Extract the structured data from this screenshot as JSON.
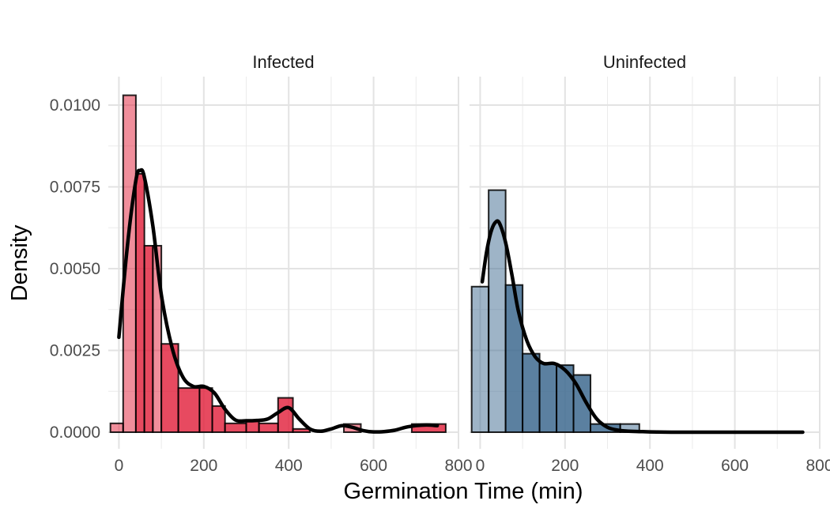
{
  "chart_data": {
    "type": "histogram",
    "xlabel": "Germination Time (min)",
    "ylabel": "Density",
    "xlim": [
      -25,
      800
    ],
    "ylim": [
      -0.0003,
      0.0108
    ],
    "x_ticks": [
      0,
      200,
      400,
      600,
      800
    ],
    "x_tick_labels": [
      "0",
      "200",
      "400",
      "600",
      "800"
    ],
    "y_ticks": [
      0.0,
      0.0025,
      0.005,
      0.0075,
      0.01
    ],
    "y_tick_labels": [
      "0.0000",
      "0.0025",
      "0.0050",
      "0.0075",
      "0.0100"
    ],
    "grid": true,
    "legend": "none",
    "panels": [
      {
        "name": "Infected",
        "fill_color": "#e11d38",
        "outline_color": "#000000",
        "bars": [
          {
            "x0": -20,
            "x1": 10,
            "density": 0.00027,
            "alpha": 0.5
          },
          {
            "x0": 10,
            "x1": 40,
            "density": 0.0103,
            "alpha": 0.5
          },
          {
            "x0": 40,
            "x1": 60,
            "density": 0.0079,
            "alpha": 0.8
          },
          {
            "x0": 60,
            "x1": 80,
            "density": 0.0057,
            "alpha": 0.8
          },
          {
            "x0": 80,
            "x1": 100,
            "density": 0.0057,
            "alpha": 0.5
          },
          {
            "x0": 100,
            "x1": 140,
            "density": 0.0027,
            "alpha": 0.8
          },
          {
            "x0": 140,
            "x1": 190,
            "density": 0.00135,
            "alpha": 0.8
          },
          {
            "x0": 190,
            "x1": 220,
            "density": 0.00135,
            "alpha": 0.8
          },
          {
            "x0": 220,
            "x1": 250,
            "density": 0.0008,
            "alpha": 0.8
          },
          {
            "x0": 250,
            "x1": 300,
            "density": 0.00027,
            "alpha": 0.8
          },
          {
            "x0": 300,
            "x1": 330,
            "density": 0.00035,
            "alpha": 0.8
          },
          {
            "x0": 330,
            "x1": 375,
            "density": 0.00027,
            "alpha": 0.8
          },
          {
            "x0": 375,
            "x1": 410,
            "density": 0.00105,
            "alpha": 0.8
          },
          {
            "x0": 410,
            "x1": 450,
            "density": 0.0001,
            "alpha": 0.8
          },
          {
            "x0": 530,
            "x1": 570,
            "density": 0.00025,
            "alpha": 0.5
          },
          {
            "x0": 690,
            "x1": 770,
            "density": 0.00025,
            "alpha": 0.8
          }
        ],
        "density_x": [
          0,
          20,
          40,
          50,
          60,
          80,
          100,
          125,
          150,
          175,
          200,
          225,
          250,
          275,
          300,
          325,
          350,
          375,
          400,
          425,
          450,
          475,
          500,
          525,
          550,
          575,
          600,
          625,
          650,
          675,
          700,
          725,
          750
        ],
        "density_y": [
          0.0029,
          0.0057,
          0.0077,
          0.008,
          0.0078,
          0.0063,
          0.0042,
          0.0026,
          0.0017,
          0.0014,
          0.0014,
          0.0012,
          0.0007,
          0.00037,
          0.00035,
          0.00036,
          0.0004,
          0.0006,
          0.00075,
          0.0004,
          0.0001,
          3e-05,
          0.0001,
          0.0002,
          0.00015,
          5e-05,
          1e-05,
          2e-05,
          6e-05,
          0.00015,
          0.0002,
          0.00022,
          0.0002
        ]
      },
      {
        "name": "Uninfected",
        "fill_color": "#3e6a8f",
        "outline_color": "#000000",
        "bars": [
          {
            "x0": -20,
            "x1": 20,
            "density": 0.00445,
            "alpha": 0.5
          },
          {
            "x0": 20,
            "x1": 60,
            "density": 0.0074,
            "alpha": 0.5
          },
          {
            "x0": 60,
            "x1": 100,
            "density": 0.0045,
            "alpha": 0.85
          },
          {
            "x0": 100,
            "x1": 140,
            "density": 0.0024,
            "alpha": 0.85
          },
          {
            "x0": 140,
            "x1": 180,
            "density": 0.0021,
            "alpha": 0.85
          },
          {
            "x0": 180,
            "x1": 220,
            "density": 0.00205,
            "alpha": 0.85
          },
          {
            "x0": 220,
            "x1": 260,
            "density": 0.00175,
            "alpha": 0.85
          },
          {
            "x0": 260,
            "x1": 330,
            "density": 0.00025,
            "alpha": 0.85
          },
          {
            "x0": 330,
            "x1": 375,
            "density": 0.00025,
            "alpha": 0.5
          }
        ],
        "density_x": [
          5,
          15,
          25,
          35,
          45,
          60,
          75,
          90,
          110,
          130,
          150,
          175,
          200,
          225,
          250,
          275,
          300,
          325,
          350,
          375,
          400,
          450,
          500,
          600,
          700,
          760
        ],
        "density_y": [
          0.0046,
          0.0055,
          0.0061,
          0.0064,
          0.0064,
          0.0058,
          0.0048,
          0.0037,
          0.0028,
          0.0023,
          0.0021,
          0.0021,
          0.0019,
          0.0015,
          0.0009,
          0.0004,
          0.00015,
          6e-05,
          3e-05,
          2e-05,
          1e-05,
          0,
          0,
          0,
          0,
          0
        ]
      }
    ]
  }
}
